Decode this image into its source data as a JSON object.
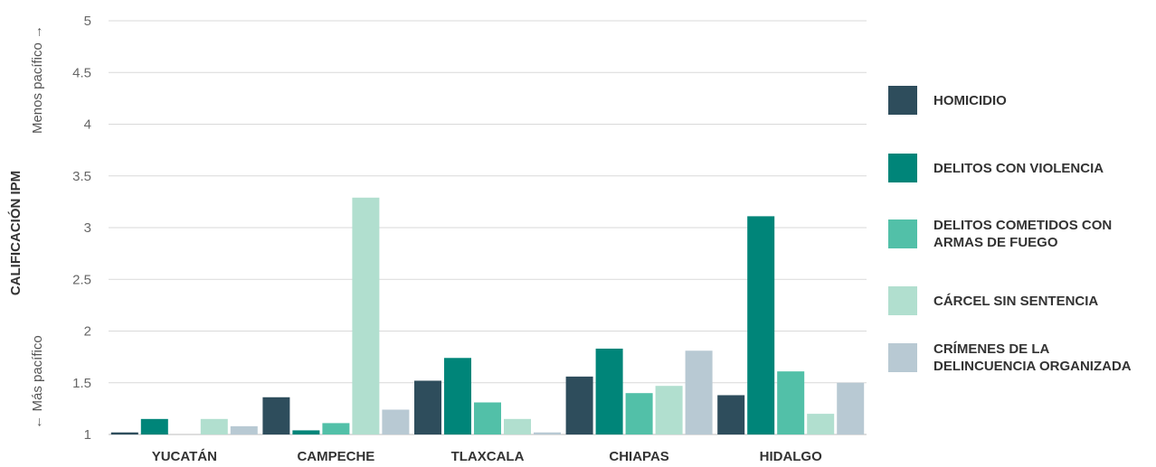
{
  "chart_data": {
    "type": "bar",
    "ylabel": "CALIFICACIÓN IPM",
    "ylabel_top": "Menos pacífico →",
    "ylabel_bottom": "← Más pacífico",
    "ylim": [
      1,
      5
    ],
    "yticks": [
      "1",
      "1.5",
      "2",
      "2.5",
      "3",
      "3.5",
      "4",
      "4.5",
      "5"
    ],
    "grid": true,
    "legend_position": "right",
    "categories": [
      "YUCATÁN",
      "CAMPECHE",
      "TLAXCALA",
      "CHIAPAS",
      "HIDALGO"
    ],
    "series": [
      {
        "name": "HOMICIDIO",
        "color": "#2e4d5c",
        "values": [
          1.02,
          1.36,
          1.52,
          1.56,
          1.38
        ]
      },
      {
        "name": "DELITOS CON VIOLENCIA",
        "color": "#008579",
        "values": [
          1.15,
          1.04,
          1.74,
          1.83,
          3.11
        ]
      },
      {
        "name": "DELITOS COMETIDOS CON ARMAS DE FUEGO",
        "color": "#52c0a8",
        "values": [
          1.0,
          1.11,
          1.31,
          1.4,
          1.61
        ]
      },
      {
        "name": "CÁRCEL SIN SENTENCIA",
        "color": "#b1dfcf",
        "values": [
          1.15,
          3.29,
          1.15,
          1.47,
          1.2
        ]
      },
      {
        "name": "CRÍMENES DE LA DELINCUENCIA ORGANIZADA",
        "color": "#b8c9d3",
        "values": [
          1.08,
          1.24,
          1.02,
          1.81,
          1.5
        ]
      }
    ]
  }
}
